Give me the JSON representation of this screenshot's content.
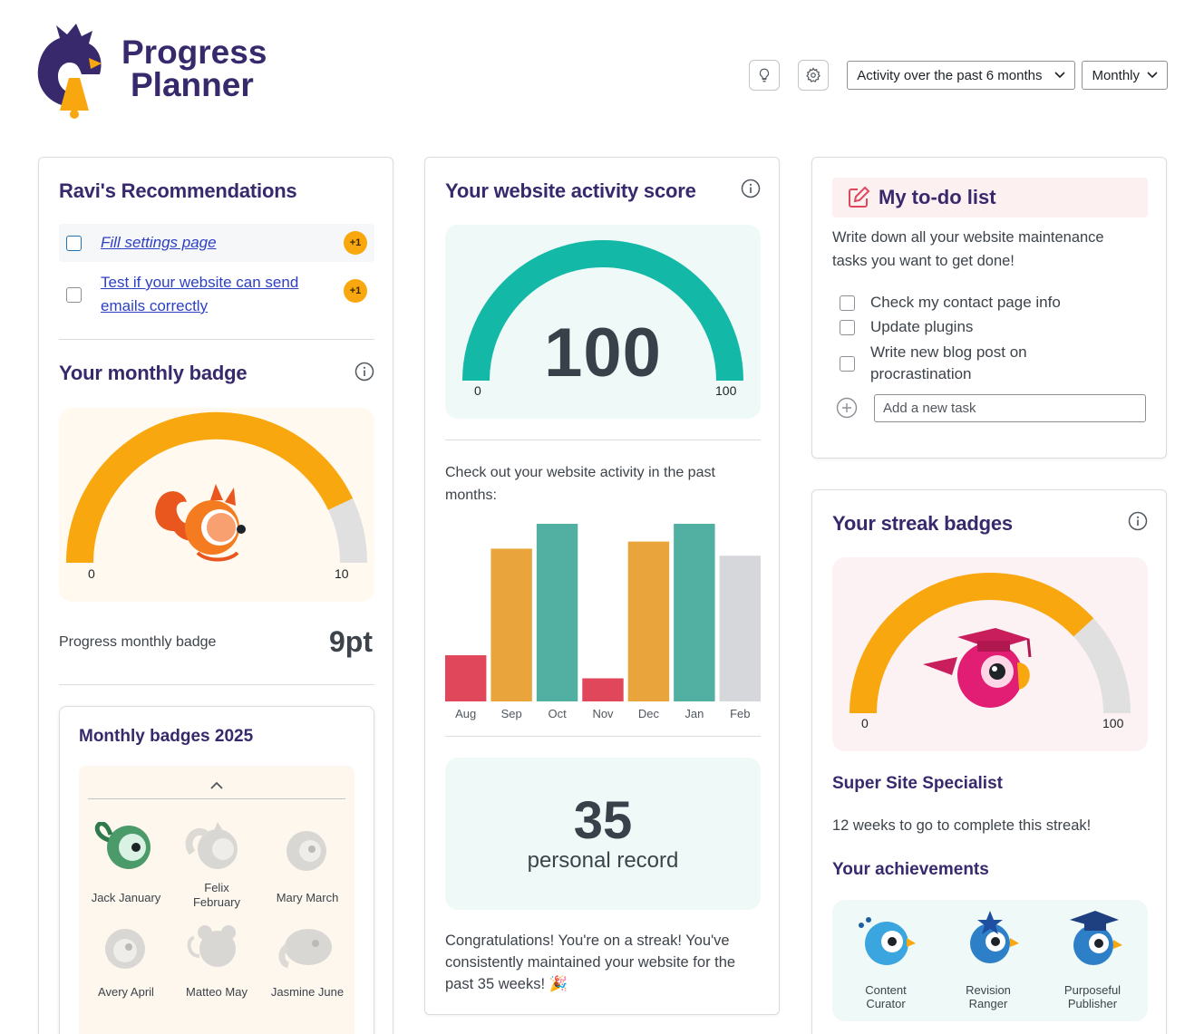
{
  "header": {
    "logo_line1": "Progress",
    "logo_line2": "Planner",
    "range_select": "Activity over the past 6 months",
    "frequency_select": "Monthly"
  },
  "recommendations": {
    "title": "Ravi's Recommendations",
    "items": [
      {
        "label": "Fill settings page",
        "points": "+1"
      },
      {
        "label": "Test if your website can send emails correctly",
        "points": "+1"
      }
    ]
  },
  "monthly_badge": {
    "title": "Your monthly badge",
    "gauge_min": "0",
    "gauge_max": "10",
    "gauge_value": 9,
    "label": "Progress monthly badge",
    "points": "9pt"
  },
  "badges_2025": {
    "title": "Monthly badges 2025",
    "badges": [
      {
        "name": "Jack January",
        "earned": true
      },
      {
        "name": "Felix February",
        "earned": false
      },
      {
        "name": "Mary March",
        "earned": false
      },
      {
        "name": "Avery April",
        "earned": false
      },
      {
        "name": "Matteo May",
        "earned": false
      },
      {
        "name": "Jasmine June",
        "earned": false
      }
    ]
  },
  "activity_score": {
    "title": "Your website activity score",
    "score": "100",
    "gauge_min": "0",
    "gauge_max": "100",
    "description": "Check out your website activity in the past months:",
    "record_number": "35",
    "record_label": "personal record",
    "streak_message": "Congratulations! You're on a streak! You've consistently maintained your website for the past 35 weeks! 🎉"
  },
  "chart_data": {
    "type": "bar",
    "categories": [
      "Aug",
      "Sep",
      "Oct",
      "Nov",
      "Dec",
      "Jan",
      "Feb"
    ],
    "values": [
      26,
      86,
      100,
      13,
      90,
      100,
      82
    ],
    "colors": [
      "#e1475b",
      "#e9a53b",
      "#52b0a3",
      "#e1475b",
      "#e9a53b",
      "#52b0a3",
      "#d5d7da"
    ],
    "ylim": [
      0,
      100
    ],
    "grid": false,
    "title": "",
    "xlabel": "",
    "ylabel": ""
  },
  "todo": {
    "title": "My to-do list",
    "description": "Write down all your website maintenance tasks you want to get done!",
    "items": [
      "Check my contact page info",
      "Update plugins",
      "Write new blog post on procrastination"
    ],
    "add_placeholder": "Add a new task"
  },
  "streak": {
    "title": "Your streak badges",
    "gauge_min": "0",
    "gauge_max": "100",
    "gauge_value": 82,
    "badge_name": "Super Site Specialist",
    "remaining": "12 weeks to go to complete this streak!",
    "achievements_title": "Your achievements",
    "achievements": [
      "Content Curator",
      "Revision Ranger",
      "Purposeful Publisher"
    ]
  },
  "colors": {
    "brand": "#38296d",
    "accent_orange": "#f9a70e",
    "teal": "#14b8a6",
    "link": "#2c3fc5"
  }
}
